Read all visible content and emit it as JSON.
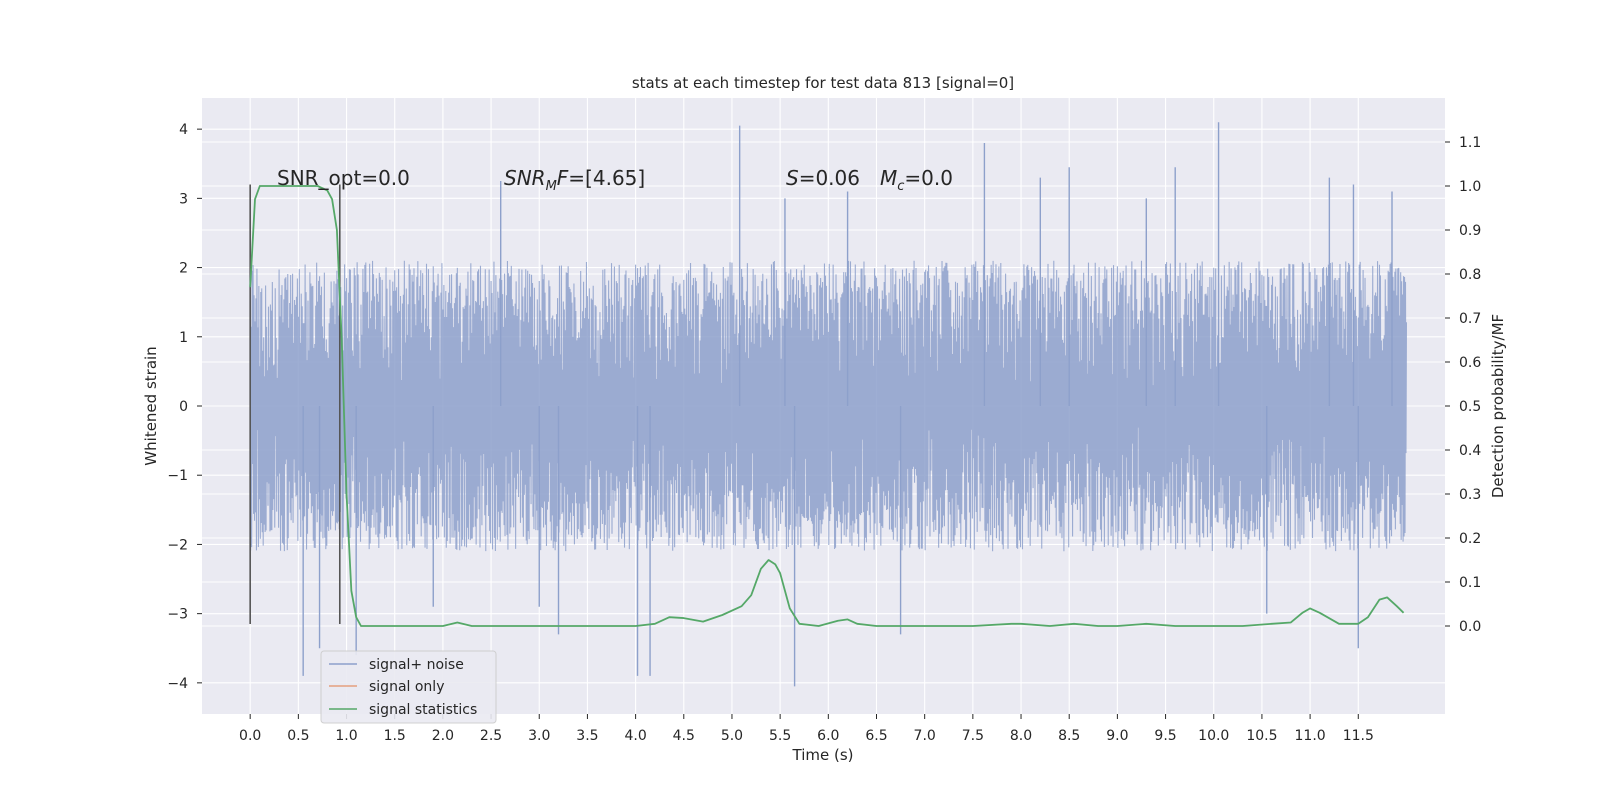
{
  "chart_data": {
    "type": "line",
    "title": "stats at each timestep for test data 813 [signal=0]",
    "xlabel": "Time (s)",
    "ylabel_left": "Whitened strain",
    "ylabel_right": "Detection probability/MF",
    "xlim": [
      -0.5,
      12.4
    ],
    "ylim_left": [
      -4.45,
      4.45
    ],
    "ylim_right": [
      -0.2,
      1.2
    ],
    "x_ticks": [
      "0.0",
      "0.5",
      "1.0",
      "1.5",
      "2.0",
      "2.5",
      "3.0",
      "3.5",
      "4.0",
      "4.5",
      "5.0",
      "5.5",
      "6.0",
      "6.5",
      "7.0",
      "7.5",
      "8.0",
      "8.5",
      "9.0",
      "9.5",
      "10.0",
      "10.5",
      "11.0",
      "11.5"
    ],
    "y_ticks_left": [
      "4",
      "3",
      "2",
      "1",
      "0",
      "−1",
      "−2",
      "−3",
      "−4"
    ],
    "y_ticks_right": [
      "1.1",
      "1.0",
      "0.9",
      "0.8",
      "0.7",
      "0.6",
      "0.5",
      "0.4",
      "0.3",
      "0.2",
      "0.1",
      "0.0"
    ],
    "grid": true,
    "legend_position": "lower-left",
    "annotations": {
      "snr_opt": "SNR_opt=0.0",
      "snr_mf": "=[4.65]",
      "s": "=0.06",
      "mc": "=0.0"
    },
    "vertical_markers": [
      {
        "x": 0.0,
        "y_range": [
          -3.15,
          3.2
        ]
      },
      {
        "x": 0.93,
        "y_range": [
          -3.15,
          3.2
        ]
      }
    ],
    "series": [
      {
        "name": "signal+ noise",
        "color": "#8da0cb",
        "axis": "left",
        "x_range": [
          0.0,
          12.0
        ],
        "typical_abs_max": 2.1,
        "spikes": [
          {
            "x": 0.55,
            "y": -3.9
          },
          {
            "x": 0.72,
            "y": -3.5
          },
          {
            "x": 1.1,
            "y": -3.6
          },
          {
            "x": 2.6,
            "y": 3.25
          },
          {
            "x": 3.2,
            "y": -3.3
          },
          {
            "x": 4.02,
            "y": -3.9
          },
          {
            "x": 4.15,
            "y": -3.9
          },
          {
            "x": 5.08,
            "y": 4.05
          },
          {
            "x": 5.65,
            "y": -4.05
          },
          {
            "x": 5.55,
            "y": 3.0
          },
          {
            "x": 6.2,
            "y": 3.1
          },
          {
            "x": 6.75,
            "y": -3.3
          },
          {
            "x": 7.62,
            "y": 3.8
          },
          {
            "x": 8.2,
            "y": 3.3
          },
          {
            "x": 8.5,
            "y": 3.45
          },
          {
            "x": 9.6,
            "y": 3.45
          },
          {
            "x": 10.05,
            "y": 4.1
          },
          {
            "x": 10.55,
            "y": -3.0
          },
          {
            "x": 11.2,
            "y": 3.3
          },
          {
            "x": 11.5,
            "y": -3.5
          },
          {
            "x": 11.45,
            "y": 3.2
          },
          {
            "x": 11.85,
            "y": 3.1
          },
          {
            "x": 3.0,
            "y": -2.9
          },
          {
            "x": 9.3,
            "y": 3.0
          },
          {
            "x": 1.9,
            "y": -2.9
          }
        ]
      },
      {
        "name": "signal only",
        "color": "#e5a07e",
        "axis": "left",
        "x": [],
        "y": []
      },
      {
        "name": "signal statistics",
        "color": "#55a868",
        "axis": "right",
        "x": [
          0.0,
          0.05,
          0.1,
          0.15,
          0.2,
          0.3,
          0.5,
          0.7,
          0.8,
          0.85,
          0.9,
          0.95,
          1.0,
          1.05,
          1.1,
          1.15,
          1.2,
          1.3,
          1.5,
          2.0,
          2.15,
          2.3,
          2.6,
          3.5,
          4.0,
          4.2,
          4.35,
          4.5,
          4.7,
          4.9,
          5.1,
          5.2,
          5.3,
          5.38,
          5.45,
          5.5,
          5.6,
          5.7,
          5.9,
          6.1,
          6.2,
          6.3,
          6.5,
          7.0,
          7.5,
          7.9,
          8.0,
          8.3,
          8.55,
          8.8,
          9.0,
          9.3,
          9.6,
          10.0,
          10.3,
          10.6,
          10.8,
          10.92,
          11.0,
          11.1,
          11.3,
          11.5,
          11.6,
          11.72,
          11.8,
          11.9,
          11.97
        ],
        "y": [
          0.77,
          0.97,
          1.0,
          1.0,
          1.0,
          1.0,
          1.0,
          1.0,
          0.99,
          0.97,
          0.9,
          0.65,
          0.3,
          0.08,
          0.02,
          0.0,
          0.0,
          0.0,
          0.0,
          0.0,
          0.008,
          0.0,
          0.0,
          0.0,
          0.0,
          0.005,
          0.02,
          0.018,
          0.01,
          0.025,
          0.045,
          0.07,
          0.13,
          0.15,
          0.14,
          0.12,
          0.04,
          0.005,
          0.0,
          0.012,
          0.015,
          0.005,
          0.0,
          0.0,
          0.0,
          0.005,
          0.005,
          0.0,
          0.005,
          0.0,
          0.0,
          0.005,
          0.0,
          0.0,
          0.0,
          0.005,
          0.008,
          0.03,
          0.04,
          0.03,
          0.005,
          0.005,
          0.02,
          0.06,
          0.065,
          0.045,
          0.03
        ]
      }
    ]
  }
}
